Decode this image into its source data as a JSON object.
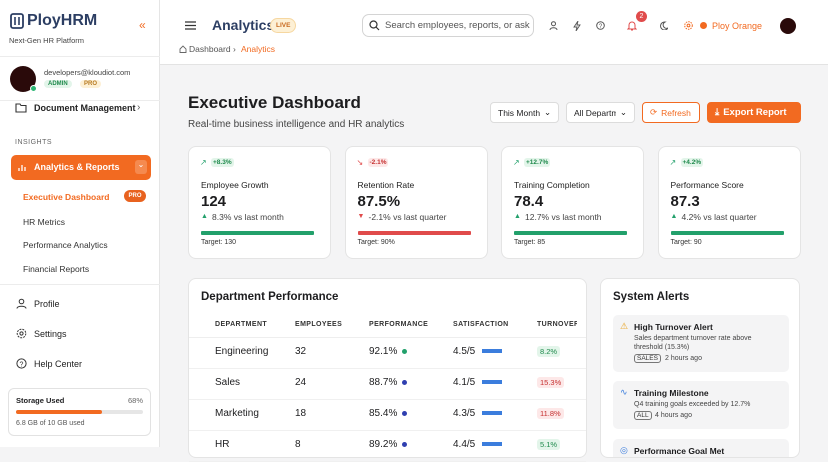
{
  "sidebar": {
    "brand": "PloyHRM",
    "tagline": "Next-Gen HR Platform",
    "user": {
      "email": "developers@kloudiot.com",
      "badges": [
        "ADMIN",
        "PRO"
      ]
    },
    "nav_top": [
      "Document Management"
    ],
    "section": "INSIGHTS",
    "active_group": "Analytics & Reports",
    "sub_items": [
      {
        "label": "Executive Dashboard",
        "badge": "PRO"
      },
      {
        "label": "HR Metrics"
      },
      {
        "label": "Performance Analytics"
      },
      {
        "label": "Financial Reports"
      }
    ],
    "nav_bottom": [
      "Profile",
      "Settings",
      "Help Center"
    ],
    "storage": {
      "title": "Storage Used",
      "percent": "68%",
      "detail": "6.8 GB of 10 GB used"
    }
  },
  "header": {
    "title": "Analytics",
    "badge": "LIVE",
    "search_placeholder": "Search employees, reports, or ask",
    "notification_count": "2",
    "user_name": "Ploy Orange"
  },
  "breadcrumb": [
    "Dashboard",
    "Analytics"
  ],
  "page": {
    "title": "Executive Dashboard",
    "subtitle": "Real-time business intelligence and HR analytics",
    "controls": {
      "period": "This Month",
      "department": "All Departments",
      "refresh": "Refresh",
      "export": "Export Report"
    }
  },
  "kpis": [
    {
      "delta": "+8.3%",
      "label": "Employee Growth",
      "value": "124",
      "trend": "8.3% vs last month",
      "target": "Target: 130"
    },
    {
      "delta": "-2.1%",
      "label": "Retention Rate",
      "value": "87.5%",
      "trend": "-2.1% vs last quarter",
      "target": "Target: 90%"
    },
    {
      "delta": "+12.7%",
      "label": "Training Completion",
      "value": "78.4",
      "trend": "12.7% vs last month",
      "target": "Target: 85"
    },
    {
      "delta": "+4.2%",
      "label": "Performance Score",
      "value": "87.3",
      "trend": "4.2% vs last quarter",
      "target": "Target: 90"
    }
  ],
  "table": {
    "title": "Department Performance",
    "columns": [
      "DEPARTMENT",
      "EMPLOYEES",
      "PERFORMANCE",
      "SATISFACTION",
      "TURNOVER"
    ],
    "rows": [
      [
        "Engineering",
        "32",
        "92.1%",
        "4.5/5",
        "8.2%"
      ],
      [
        "Sales",
        "24",
        "88.7%",
        "4.1/5",
        "15.3%"
      ],
      [
        "Marketing",
        "18",
        "85.4%",
        "4.3/5",
        "11.8%"
      ],
      [
        "HR",
        "8",
        "89.2%",
        "4.4/5",
        "5.1%"
      ]
    ]
  },
  "alerts": {
    "title": "System Alerts",
    "items": [
      {
        "title": "High Turnover Alert",
        "description": "Sales department turnover rate above threshold (15.3%)",
        "tag": "SALES",
        "time": "2 hours ago"
      },
      {
        "title": "Training Milestone",
        "description": "Q4 training goals exceeded by 12.7%",
        "tag": "ALL",
        "time": "4 hours ago"
      },
      {
        "title": "Performance Goal Met"
      }
    ]
  }
}
